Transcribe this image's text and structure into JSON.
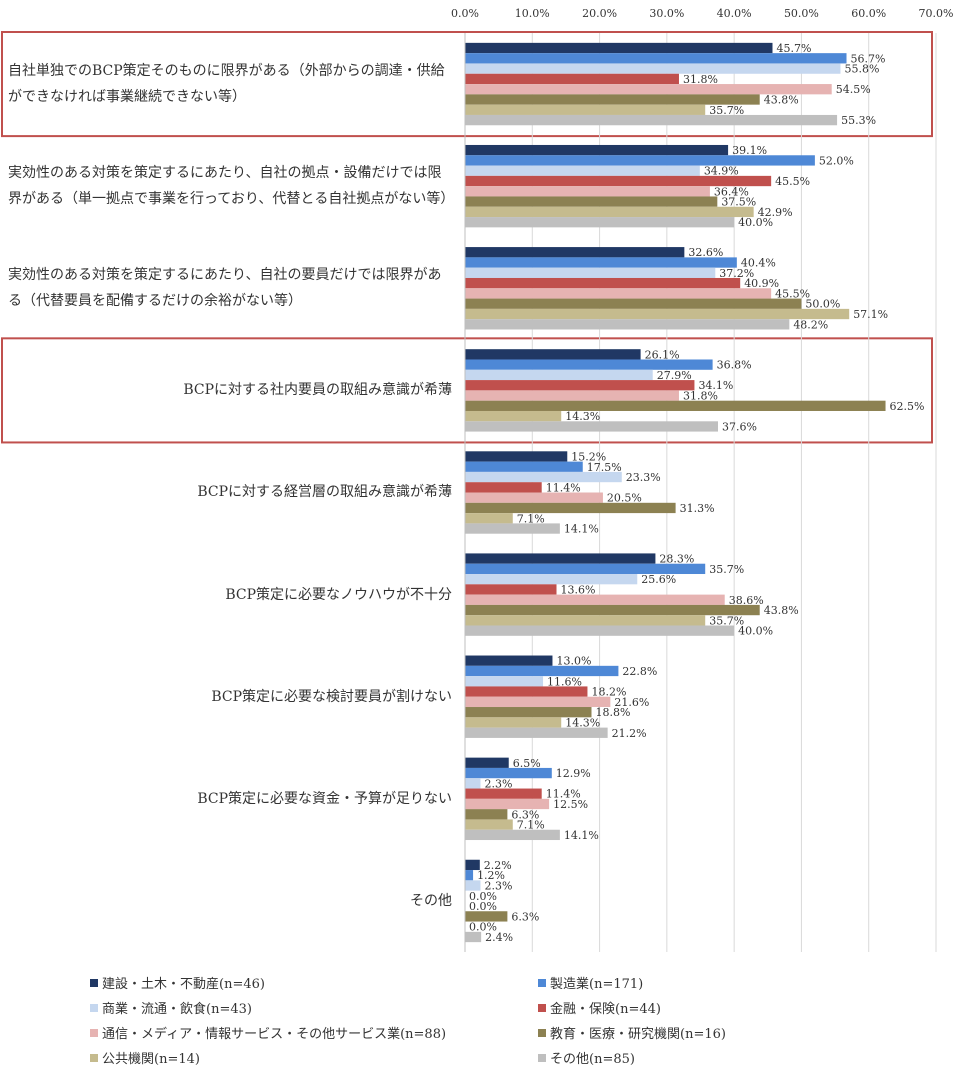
{
  "chart_data": {
    "type": "bar",
    "orientation": "horizontal",
    "categories": [
      "自社単独でのBCP策定そのものに限界がある（外部からの調達・供給ができなければ事業継続できない等）",
      "実効性のある対策を策定するにあたり、自社の拠点・設備だけでは限界がある（単一拠点で事業を行っており、代替とる自社拠点がない等）",
      "実効性のある対策を策定するにあたり、自社の要員だけでは限界がある（代替要員を配備するだけの余裕がない等）",
      "BCPに対する社内要員の取組み意識が希薄",
      "BCPに対する経営層の取組み意識が希薄",
      "BCP策定に必要なノウハウが不十分",
      "BCP策定に必要な検討要員が割けない",
      "BCP策定に必要な資金・予算が足りない",
      "その他"
    ],
    "series": [
      {
        "name": "建設・土木・不動産(n=46)",
        "color": "#203864",
        "values": [
          45.7,
          39.1,
          32.6,
          26.1,
          15.2,
          28.3,
          13.0,
          6.5,
          2.2
        ],
        "value_labels": [
          "45.7%",
          "39.1%",
          "32.6%",
          "26.1%",
          "15.2%",
          "28.3%",
          "13.0%",
          "6.5%",
          "2.2%"
        ]
      },
      {
        "name": "製造業(n=171)",
        "color": "#4e88d6",
        "values": [
          56.7,
          52.0,
          40.4,
          36.8,
          17.5,
          35.7,
          22.8,
          12.9,
          1.2
        ],
        "value_labels": [
          "56.7%",
          "52.0%",
          "40.4%",
          "36.8%",
          "17.5%",
          "35.7%",
          "22.8%",
          "12.9%",
          "1.2%"
        ]
      },
      {
        "name": "商業・流通・飲食(n=43)",
        "color": "#c5d7ef",
        "values": [
          55.8,
          34.9,
          37.2,
          27.9,
          23.3,
          25.6,
          11.6,
          2.3,
          2.3
        ],
        "value_labels": [
          "55.8%",
          "34.9%",
          "37.2%",
          "27.9%",
          "23.3%",
          "25.6%",
          "11.6%",
          "2.3%",
          "2.3%"
        ]
      },
      {
        "name": "金融・保険(n=44)",
        "color": "#c0504d",
        "values": [
          31.8,
          45.5,
          40.9,
          34.1,
          11.4,
          13.6,
          18.2,
          11.4,
          0.0
        ],
        "value_labels": [
          "31.8%",
          "45.5%",
          "40.9%",
          "34.1%",
          "11.4%",
          "13.6%",
          "18.2%",
          "11.4%",
          "0.0%"
        ]
      },
      {
        "name": "通信・メディア・情報サービス・その他サービス業(n=88)",
        "color": "#e6b3b2",
        "values": [
          54.5,
          36.4,
          45.5,
          31.8,
          20.5,
          38.6,
          21.6,
          12.5,
          0.0
        ],
        "value_labels": [
          "54.5%",
          "36.4%",
          "45.5%",
          "31.8%",
          "20.5%",
          "38.6%",
          "21.6%",
          "12.5%",
          "0.0%"
        ]
      },
      {
        "name": "教育・医療・研究機関(n=16)",
        "color": "#8c8152",
        "values": [
          43.8,
          37.5,
          50.0,
          62.5,
          31.3,
          43.8,
          18.8,
          6.3,
          6.3
        ],
        "value_labels": [
          "43.8%",
          "37.5%",
          "50.0%",
          "62.5%",
          "31.3%",
          "43.8%",
          "18.8%",
          "6.3%",
          "6.3%"
        ]
      },
      {
        "name": "公共機関(n=14)",
        "color": "#c5bb8e",
        "values": [
          35.7,
          42.9,
          57.1,
          14.3,
          7.1,
          35.7,
          14.3,
          7.1,
          0.0
        ],
        "value_labels": [
          "35.7%",
          "42.9%",
          "57.1%",
          "14.3%",
          "7.1%",
          "35.7%",
          "14.3%",
          "7.1%",
          "0.0%"
        ]
      },
      {
        "name": "その他(n=85)",
        "color": "#bfbfbf",
        "values": [
          55.3,
          40.0,
          48.2,
          37.6,
          14.1,
          40.0,
          21.2,
          14.1,
          2.4
        ],
        "value_labels": [
          "55.3%",
          "40.0%",
          "48.2%",
          "37.6%",
          "14.1%",
          "40.0%",
          "21.2%",
          "14.1%",
          "2.4%"
        ]
      }
    ],
    "xlim": [
      0,
      70
    ],
    "xticks": [
      {
        "value": 0,
        "label": "0.0%"
      },
      {
        "value": 10,
        "label": "10.0%"
      },
      {
        "value": 20,
        "label": "20.0%"
      },
      {
        "value": 30,
        "label": "30.0%"
      },
      {
        "value": 40,
        "label": "40.0%"
      },
      {
        "value": 50,
        "label": "50.0%"
      },
      {
        "value": 60,
        "label": "60.0%"
      },
      {
        "value": 70,
        "label": "70.0%"
      }
    ],
    "grid": true,
    "legend": "bottom"
  }
}
